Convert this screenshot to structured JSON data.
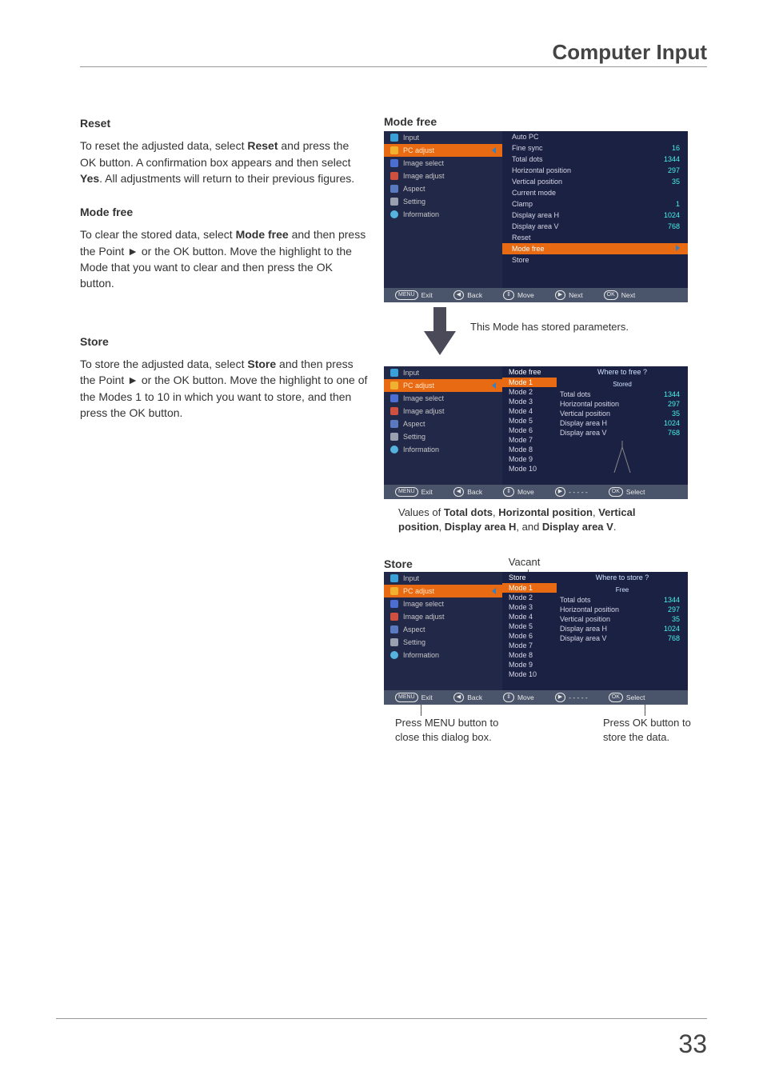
{
  "header": {
    "title": "Computer Input"
  },
  "page_number": "33",
  "left": {
    "reset": {
      "heading": "Reset",
      "body_parts": [
        "To reset the adjusted data, select ",
        "Reset",
        " and press the OK button. A confirmation box appears and then select ",
        "Yes",
        ". All adjustments will return to their previous figures."
      ]
    },
    "modefree": {
      "heading": "Mode free",
      "body_parts": [
        "To clear the stored data, select ",
        "Mode free",
        " and then press the Point ► or the OK button. Move the highlight to the Mode that you want to clear and then press the OK button."
      ]
    },
    "store": {
      "heading": "Store",
      "body_parts": [
        "To store the adjusted data, select ",
        "Store",
        " and then press the Point ► or the OK button. Move the highlight to one of the Modes 1 to 10 in which you want to store, and then press the OK button."
      ]
    }
  },
  "osd_sidebar": {
    "items": [
      "Input",
      "PC adjust",
      "Image select",
      "Image adjust",
      "Aspect",
      "Setting",
      "Information"
    ],
    "selected_index": 1
  },
  "fig1": {
    "label": "Mode free",
    "rows": [
      {
        "label": "Auto PC",
        "val": ""
      },
      {
        "label": "Fine sync",
        "val": "16"
      },
      {
        "label": "Total dots",
        "val": "1344"
      },
      {
        "label": "Horizontal position",
        "val": "297"
      },
      {
        "label": "Vertical position",
        "val": "35"
      },
      {
        "label": "Current mode",
        "val": ""
      },
      {
        "label": "Clamp",
        "val": "1"
      },
      {
        "label": "Display area H",
        "val": "1024"
      },
      {
        "label": "Display area V",
        "val": "768"
      },
      {
        "label": "Reset",
        "val": ""
      },
      {
        "label": "Mode free",
        "val": "",
        "hl": true,
        "arrow": true
      },
      {
        "label": "Store",
        "val": ""
      }
    ],
    "footer": [
      "Exit",
      "Back",
      "Move",
      "Next",
      "Next"
    ],
    "footer_icons": [
      "MENU",
      "◀",
      "⇕",
      "▶",
      "OK"
    ]
  },
  "mid_caption": "This Mode has stored parameters.",
  "fig2": {
    "header_left": "Mode free",
    "header_right": "Where to free ?",
    "sub": "Stored",
    "modes": [
      "Mode 1",
      "Mode 2",
      "Mode 3",
      "Mode 4",
      "Mode 5",
      "Mode 6",
      "Mode 7",
      "Mode 8",
      "Mode 9",
      "Mode 10"
    ],
    "hl_index": 0,
    "params": [
      {
        "label": "Total dots",
        "val": "1344"
      },
      {
        "label": "Horizontal position",
        "val": "297"
      },
      {
        "label": "Vertical position",
        "val": "35"
      },
      {
        "label": "Display area H",
        "val": "1024"
      },
      {
        "label": "Display area V",
        "val": "768"
      }
    ],
    "footer": [
      "Exit",
      "Back",
      "Move",
      "- - - - -",
      "Select"
    ],
    "footer_icons": [
      "MENU",
      "◀",
      "⇕",
      "▶",
      "OK"
    ]
  },
  "fig2_caption_parts": [
    "Values of ",
    "Total dots",
    ", ",
    "Horizontal position",
    ", ",
    "Vertical position",
    ", ",
    "Display area H",
    ", and ",
    "Display area V",
    "."
  ],
  "fig3": {
    "label": "Store",
    "annot_top": "Vacant",
    "header_left": "Store",
    "header_right": "Where to store ?",
    "sub": "Free",
    "modes": [
      "Mode 1",
      "Mode 2",
      "Mode 3",
      "Mode 4",
      "Mode 5",
      "Mode 6",
      "Mode 7",
      "Mode 8",
      "Mode 9",
      "Mode 10"
    ],
    "hl_index": 0,
    "params": [
      {
        "label": "Total dots",
        "val": "1344"
      },
      {
        "label": "Horizontal position",
        "val": "297"
      },
      {
        "label": "Vertical position",
        "val": "35"
      },
      {
        "label": "Display area H",
        "val": "1024"
      },
      {
        "label": "Display area V",
        "val": "768"
      }
    ],
    "footer": [
      "Exit",
      "Back",
      "Move",
      "- - - - -",
      "Select"
    ],
    "footer_icons": [
      "MENU",
      "◀",
      "⇕",
      "▶",
      "OK"
    ],
    "caption_left": "Press MENU button to close this dialog box.",
    "caption_right": "Press OK button to store the data."
  },
  "colors": {
    "osd_bg": "#1a1f3a",
    "osd_left_bg": "#222848",
    "highlight": "#e86a12",
    "value": "#47f2ec",
    "footer_bg": "#4a546a"
  }
}
